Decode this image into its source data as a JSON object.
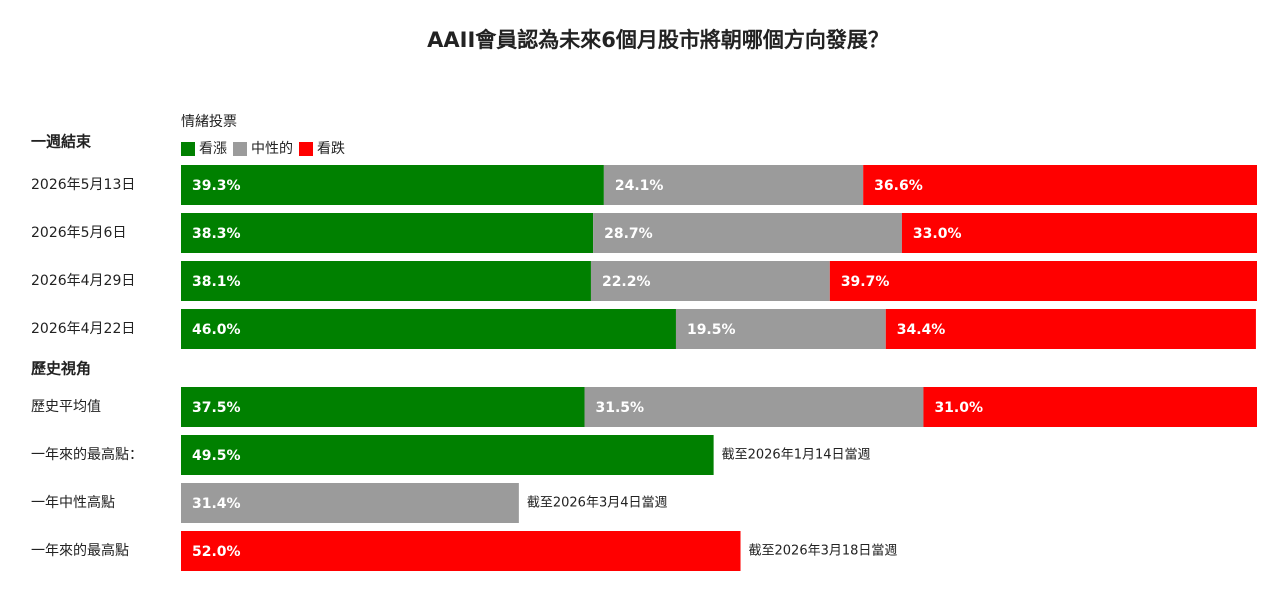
{
  "chart_data": {
    "type": "bar",
    "orientation": "horizontal",
    "stacked": true,
    "title": "AAII會員認為未來6個月股市將朝哪個方向發展？",
    "legend_title": "情緒投票",
    "series": [
      {
        "name": "看漲",
        "color": "#008000"
      },
      {
        "name": "中性的",
        "color": "#9b9b9b"
      },
      {
        "name": "看跌",
        "color": "#ff0000"
      }
    ],
    "xlim": [
      0,
      100
    ],
    "groups": [
      {
        "label": "一週結束",
        "rows": [
          {
            "category": "2026年5月13日",
            "values": [
              39.3,
              24.1,
              36.6
            ],
            "value_labels": [
              "39.3%",
              "24.1%",
              "36.6%"
            ]
          },
          {
            "category": "2026年5月6日",
            "values": [
              38.3,
              28.7,
              33.0
            ],
            "value_labels": [
              "38.3%",
              "28.7%",
              "33.0%"
            ]
          },
          {
            "category": "2026年4月29日",
            "values": [
              38.1,
              22.2,
              39.7
            ],
            "value_labels": [
              "38.1%",
              "22.2%",
              "39.7%"
            ]
          },
          {
            "category": "2026年4月22日",
            "values": [
              46.0,
              19.5,
              34.4
            ],
            "value_labels": [
              "46.0%",
              "19.5%",
              "34.4%"
            ]
          }
        ]
      },
      {
        "label": "歷史視角",
        "rows": [
          {
            "category": "歷史平均值",
            "values": [
              37.5,
              31.5,
              31.0
            ],
            "value_labels": [
              "37.5%",
              "31.5%",
              "31.0%"
            ]
          },
          {
            "category": "一年來的最高點：",
            "values": [
              49.5,
              null,
              null
            ],
            "value_labels": [
              "49.5%",
              null,
              null
            ],
            "note": "截至2026年1月14日當週"
          },
          {
            "category": "一年中性高點",
            "values": [
              null,
              31.4,
              null
            ],
            "value_labels": [
              null,
              "31.4%",
              null
            ],
            "note": "截至2026年3月4日當週"
          },
          {
            "category": "一年來的最高點",
            "values": [
              null,
              null,
              52.0
            ],
            "value_labels": [
              null,
              null,
              "52.0%"
            ],
            "note": "截至2026年3月18日當週"
          }
        ]
      }
    ]
  }
}
